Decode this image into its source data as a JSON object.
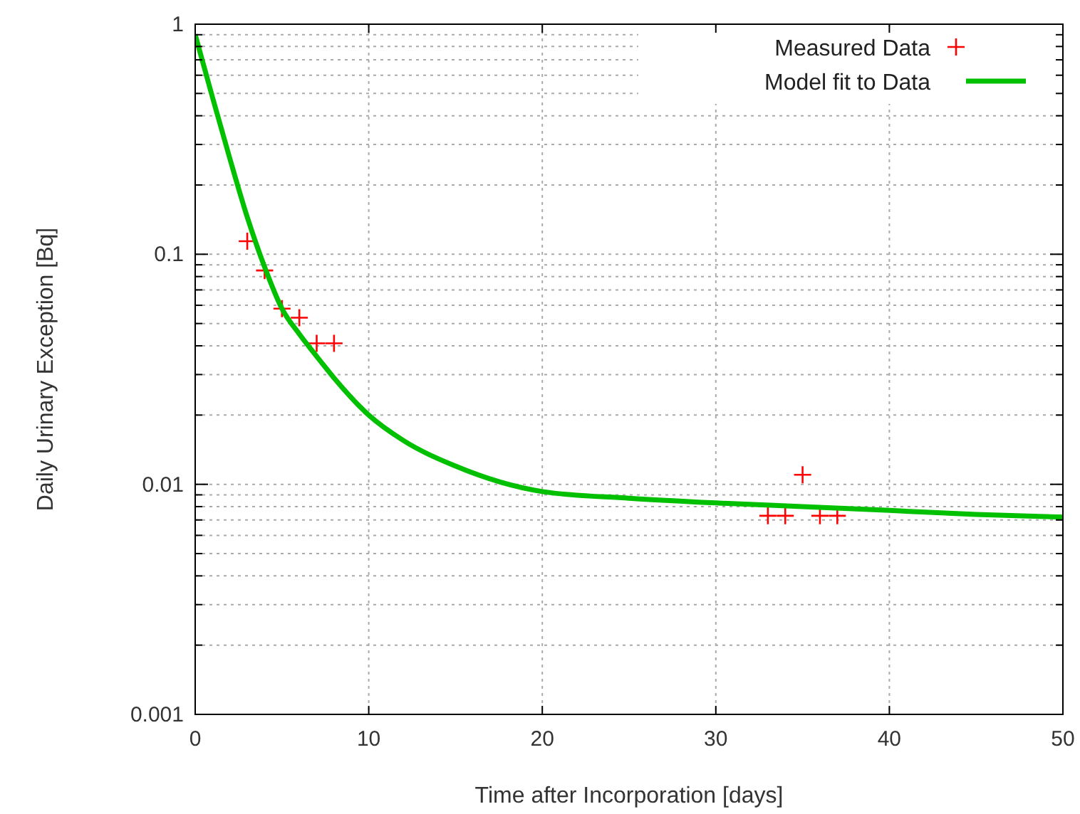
{
  "chart_data": {
    "type": "scatter",
    "xlabel": "Time after Incorporation [days]",
    "ylabel": "Daily Urinary Exception [Bq]",
    "log": "y",
    "grid": true,
    "legend": "top right",
    "xlim": [
      0,
      50
    ],
    "xticks": [
      0,
      10,
      20,
      30,
      40,
      50
    ],
    "ylim": [
      0.001,
      1
    ],
    "yticks": [
      0.001,
      0.01,
      0.1,
      1
    ],
    "series": [
      {
        "name": "Measured Data",
        "marker": "cross",
        "color": "#ff0000",
        "x": [
          3,
          4,
          5,
          6,
          7,
          8,
          33,
          34,
          35,
          36,
          37
        ],
        "values": [
          0.114,
          0.085,
          0.058,
          0.053,
          0.041,
          0.041,
          0.0073,
          0.0073,
          0.011,
          0.0073,
          0.0073
        ]
      },
      {
        "name": "Model fit to Data",
        "type": "line",
        "marker": "none",
        "line_style": "solid",
        "color": "#00c000",
        "x": [
          0,
          1,
          2,
          3,
          4,
          5,
          6,
          7,
          8,
          10,
          12,
          15,
          20,
          25,
          30,
          35,
          40,
          45,
          50
        ],
        "values": [
          0.9,
          0.48,
          0.26,
          0.145,
          0.088,
          0.058,
          0.045,
          0.036,
          0.029,
          0.02,
          0.0155,
          0.012,
          0.0093,
          0.0087,
          0.0083,
          0.008,
          0.0077,
          0.0074,
          0.0072
        ]
      }
    ]
  }
}
